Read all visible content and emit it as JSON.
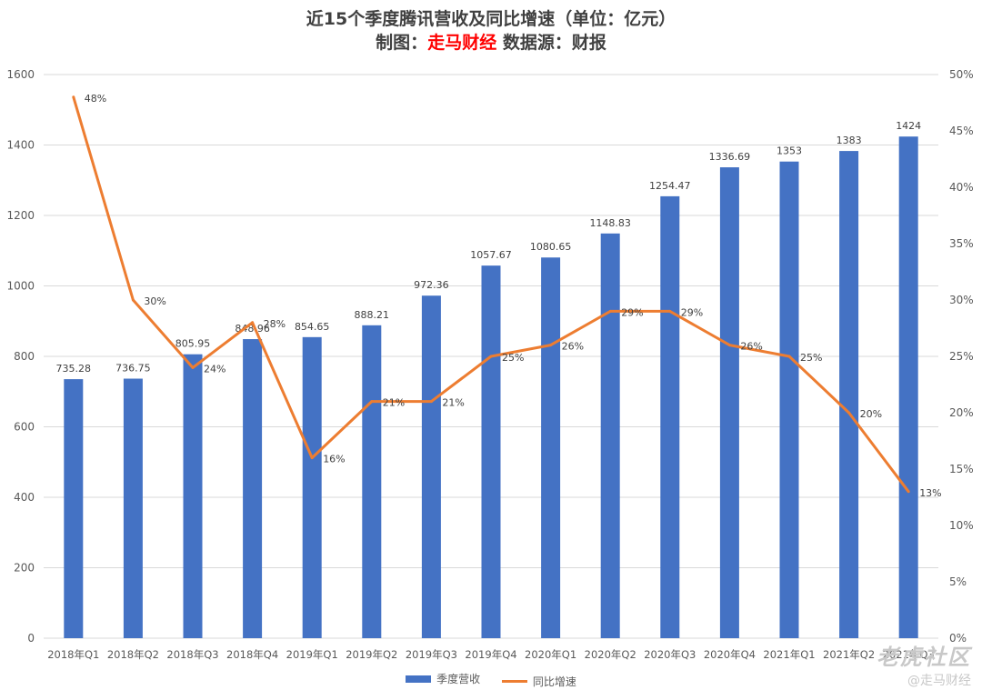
{
  "header": {
    "title_line1": "近15个季度腾讯营收及同比增速（单位：亿元）",
    "title_prefix": "制图：",
    "title_brand": "走马财经",
    "title_suffix": " 数据源：财报"
  },
  "chart_data": {
    "type": "bar",
    "categories": [
      "2018年Q1",
      "2018年Q2",
      "2018年Q3",
      "2018年Q4",
      "2019年Q1",
      "2019年Q2",
      "2019年Q3",
      "2019年Q4",
      "2020年Q1",
      "2020年Q2",
      "2020年Q3",
      "2020年Q4",
      "2021年Q1",
      "2021年Q2",
      "2021年Q3"
    ],
    "series": [
      {
        "name": "季度营收",
        "type": "bar",
        "axis": "left",
        "color": "#4472c4",
        "values": [
          735.28,
          736.75,
          805.95,
          848.96,
          854.65,
          888.21,
          972.36,
          1057.67,
          1080.65,
          1148.83,
          1254.47,
          1336.69,
          1353,
          1383,
          1424
        ],
        "labels": [
          "735.28",
          "736.75",
          "805.95",
          "848.96",
          "854.65",
          "888.21",
          "972.36",
          "1057.67",
          "1080.65",
          "1148.83",
          "1254.47",
          "1336.69",
          "1353",
          "1383",
          "1424"
        ]
      },
      {
        "name": "同比增速",
        "type": "line",
        "axis": "right",
        "color": "#ed7d31",
        "values": [
          48,
          30,
          24,
          28,
          16,
          21,
          21,
          25,
          26,
          29,
          29,
          26,
          25,
          20,
          13
        ],
        "labels": [
          "48%",
          "30%",
          "24%",
          "28%",
          "16%",
          "21%",
          "21%",
          "25%",
          "26%",
          "29%",
          "29%",
          "26%",
          "25%",
          "20%",
          "13%"
        ]
      }
    ],
    "y_left": {
      "min": 0,
      "max": 1600,
      "step": 200,
      "ticks": [
        "0",
        "200",
        "400",
        "600",
        "800",
        "1000",
        "1200",
        "1400",
        "1600"
      ]
    },
    "y_right": {
      "min": 0,
      "max": 50,
      "step": 5,
      "ticks": [
        "0%",
        "5%",
        "10%",
        "15%",
        "20%",
        "25%",
        "30%",
        "35%",
        "40%",
        "45%",
        "50%"
      ]
    },
    "grid": true,
    "legend_position": "bottom"
  },
  "watermark": {
    "line1": "老虎社区",
    "line2": "@走马财经"
  }
}
